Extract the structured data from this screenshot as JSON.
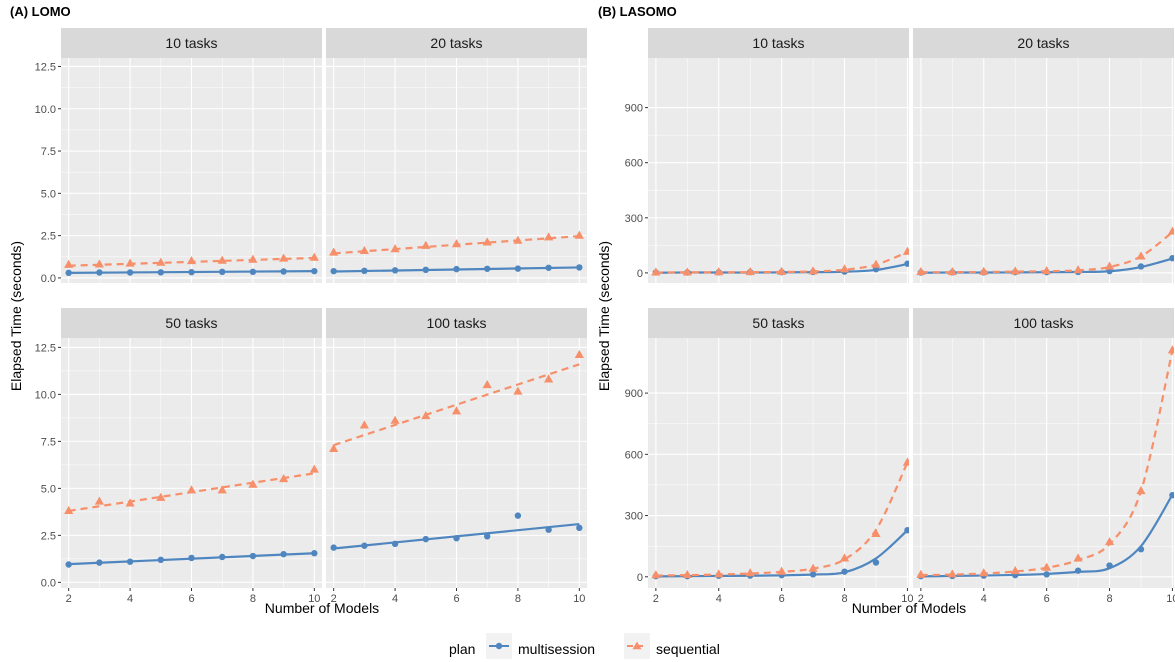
{
  "legend": {
    "title": "plan",
    "items": [
      {
        "label": "multisession",
        "color": "#4f86bf",
        "shape": "circle",
        "linetype": "solid"
      },
      {
        "label": "sequential",
        "color": "#f68f6a",
        "shape": "triangle",
        "linetype": "dashed"
      }
    ]
  },
  "chart_data": [
    {
      "type": "line",
      "title": "(A) LOMO",
      "xlabel": "Number of Models",
      "ylabel": "Elapsed Time (seconds)",
      "xlim": [
        1.75,
        10.25
      ],
      "ylim": [
        -0.3,
        13.0
      ],
      "x_ticks": [
        2,
        4,
        6,
        8,
        10
      ],
      "y_ticks": [
        0.0,
        2.5,
        5.0,
        7.5,
        10.0,
        12.5
      ],
      "y_tick_labels": [
        "0.0",
        "2.5",
        "5.0",
        "7.5",
        "10.0",
        "12.5"
      ],
      "grid": true,
      "legend_position": "bottom",
      "panels": [
        {
          "label": "10 tasks",
          "x": [
            2,
            3,
            4,
            5,
            6,
            7,
            8,
            9,
            10
          ],
          "series": [
            {
              "name": "multisession",
              "values": [
                0.3,
                0.32,
                0.32,
                0.33,
                0.34,
                0.36,
                0.36,
                0.38,
                0.4
              ],
              "fit": [
                0.3,
                0.4
              ]
            },
            {
              "name": "sequential",
              "values": [
                0.78,
                0.8,
                0.85,
                0.9,
                1.0,
                1.02,
                1.08,
                1.15,
                1.2
              ],
              "fit": [
                0.72,
                1.18
              ]
            }
          ]
        },
        {
          "label": "20 tasks",
          "x": [
            2,
            3,
            4,
            5,
            6,
            7,
            8,
            9,
            10
          ],
          "series": [
            {
              "name": "multisession",
              "values": [
                0.4,
                0.42,
                0.45,
                0.48,
                0.52,
                0.54,
                0.55,
                0.6,
                0.62
              ],
              "fit": [
                0.38,
                0.62
              ]
            },
            {
              "name": "sequential",
              "values": [
                1.5,
                1.6,
                1.7,
                1.9,
                2.0,
                2.1,
                2.2,
                2.4,
                2.5
              ],
              "fit": [
                1.45,
                2.47
              ]
            }
          ]
        },
        {
          "label": "50 tasks",
          "x": [
            2,
            3,
            4,
            5,
            6,
            7,
            8,
            9,
            10
          ],
          "series": [
            {
              "name": "multisession",
              "values": [
                0.95,
                1.05,
                1.1,
                1.2,
                1.3,
                1.35,
                1.4,
                1.5,
                1.55
              ],
              "fit": [
                0.97,
                1.55
              ]
            },
            {
              "name": "sequential",
              "values": [
                3.8,
                4.3,
                4.2,
                4.5,
                4.9,
                4.9,
                5.2,
                5.5,
                6.0
              ],
              "fit": [
                3.8,
                5.8
              ]
            }
          ]
        },
        {
          "label": "100 tasks",
          "x": [
            2,
            3,
            4,
            5,
            6,
            7,
            8,
            9,
            10
          ],
          "series": [
            {
              "name": "multisession",
              "values": [
                1.85,
                1.95,
                2.05,
                2.3,
                2.35,
                2.45,
                3.55,
                2.8,
                2.9
              ],
              "fit": [
                1.8,
                3.1
              ]
            },
            {
              "name": "sequential",
              "values": [
                7.1,
                8.35,
                8.6,
                8.85,
                9.1,
                10.5,
                10.15,
                10.8,
                12.1
              ],
              "fit": [
                7.3,
                11.6
              ]
            }
          ]
        }
      ]
    },
    {
      "type": "line",
      "title": "(B) LASOMO",
      "xlabel": "Number of Models",
      "ylabel": "Elapsed Time (seconds)",
      "xlim": [
        1.75,
        10.05
      ],
      "ylim": [
        -55,
        1170
      ],
      "x_ticks": [
        2,
        4,
        6,
        8,
        10
      ],
      "y_ticks": [
        0,
        300,
        600,
        900
      ],
      "y_tick_labels": [
        "0",
        "300",
        "600",
        "900"
      ],
      "grid": true,
      "legend_position": "bottom",
      "panels": [
        {
          "label": "10 tasks",
          "x": [
            2,
            3,
            4,
            5,
            6,
            7,
            8,
            9,
            10
          ],
          "series": [
            {
              "name": "multisession",
              "values": [
                2,
                2,
                3,
                4,
                4,
                5,
                7,
                20,
                50
              ],
              "fit": [
                1,
                2,
                2,
                2,
                3,
                4,
                6,
                16,
                48
              ]
            },
            {
              "name": "sequential",
              "values": [
                3,
                3,
                4,
                5,
                6,
                9,
                20,
                45,
                115
              ],
              "fit": [
                2,
                3,
                3,
                4,
                5,
                8,
                17,
                45,
                113
              ]
            }
          ]
        },
        {
          "label": "20 tasks",
          "x": [
            2,
            3,
            4,
            5,
            6,
            7,
            8,
            9,
            10
          ],
          "series": [
            {
              "name": "multisession",
              "values": [
                2,
                3,
                3,
                4,
                4,
                5,
                10,
                35,
                80
              ],
              "fit": [
                1,
                2,
                2,
                3,
                4,
                5,
                9,
                32,
                78
              ]
            },
            {
              "name": "sequential",
              "values": [
                5,
                5,
                6,
                8,
                10,
                15,
                35,
                90,
                225
              ],
              "fit": [
                4,
                4,
                5,
                7,
                9,
                14,
                32,
                90,
                222
              ]
            }
          ]
        },
        {
          "label": "50 tasks",
          "x": [
            2,
            3,
            4,
            5,
            6,
            7,
            8,
            9,
            10
          ],
          "series": [
            {
              "name": "multisession",
              "values": [
                3,
                3,
                5,
                6,
                8,
                12,
                25,
                70,
                228
              ],
              "fit": [
                2,
                3,
                4,
                5,
                7,
                11,
                22,
                90,
                228
              ]
            },
            {
              "name": "sequential",
              "values": [
                8,
                9,
                12,
                18,
                25,
                40,
                90,
                210,
                560
              ],
              "fit": [
                6,
                8,
                11,
                16,
                24,
                40,
                85,
                230,
                560
              ]
            }
          ]
        },
        {
          "label": "100 tasks",
          "x": [
            2,
            3,
            4,
            5,
            6,
            7,
            8,
            9,
            10
          ],
          "series": [
            {
              "name": "multisession",
              "values": [
                3,
                4,
                6,
                8,
                12,
                30,
                55,
                135,
                400
              ],
              "fit": [
                2,
                4,
                6,
                9,
                14,
                24,
                42,
                150,
                402
              ]
            },
            {
              "name": "sequential",
              "values": [
                10,
                12,
                18,
                28,
                45,
                90,
                170,
                420,
                1110
              ],
              "fit": [
                8,
                11,
                16,
                26,
                44,
                82,
                160,
                420,
                1110
              ]
            }
          ]
        }
      ]
    }
  ]
}
